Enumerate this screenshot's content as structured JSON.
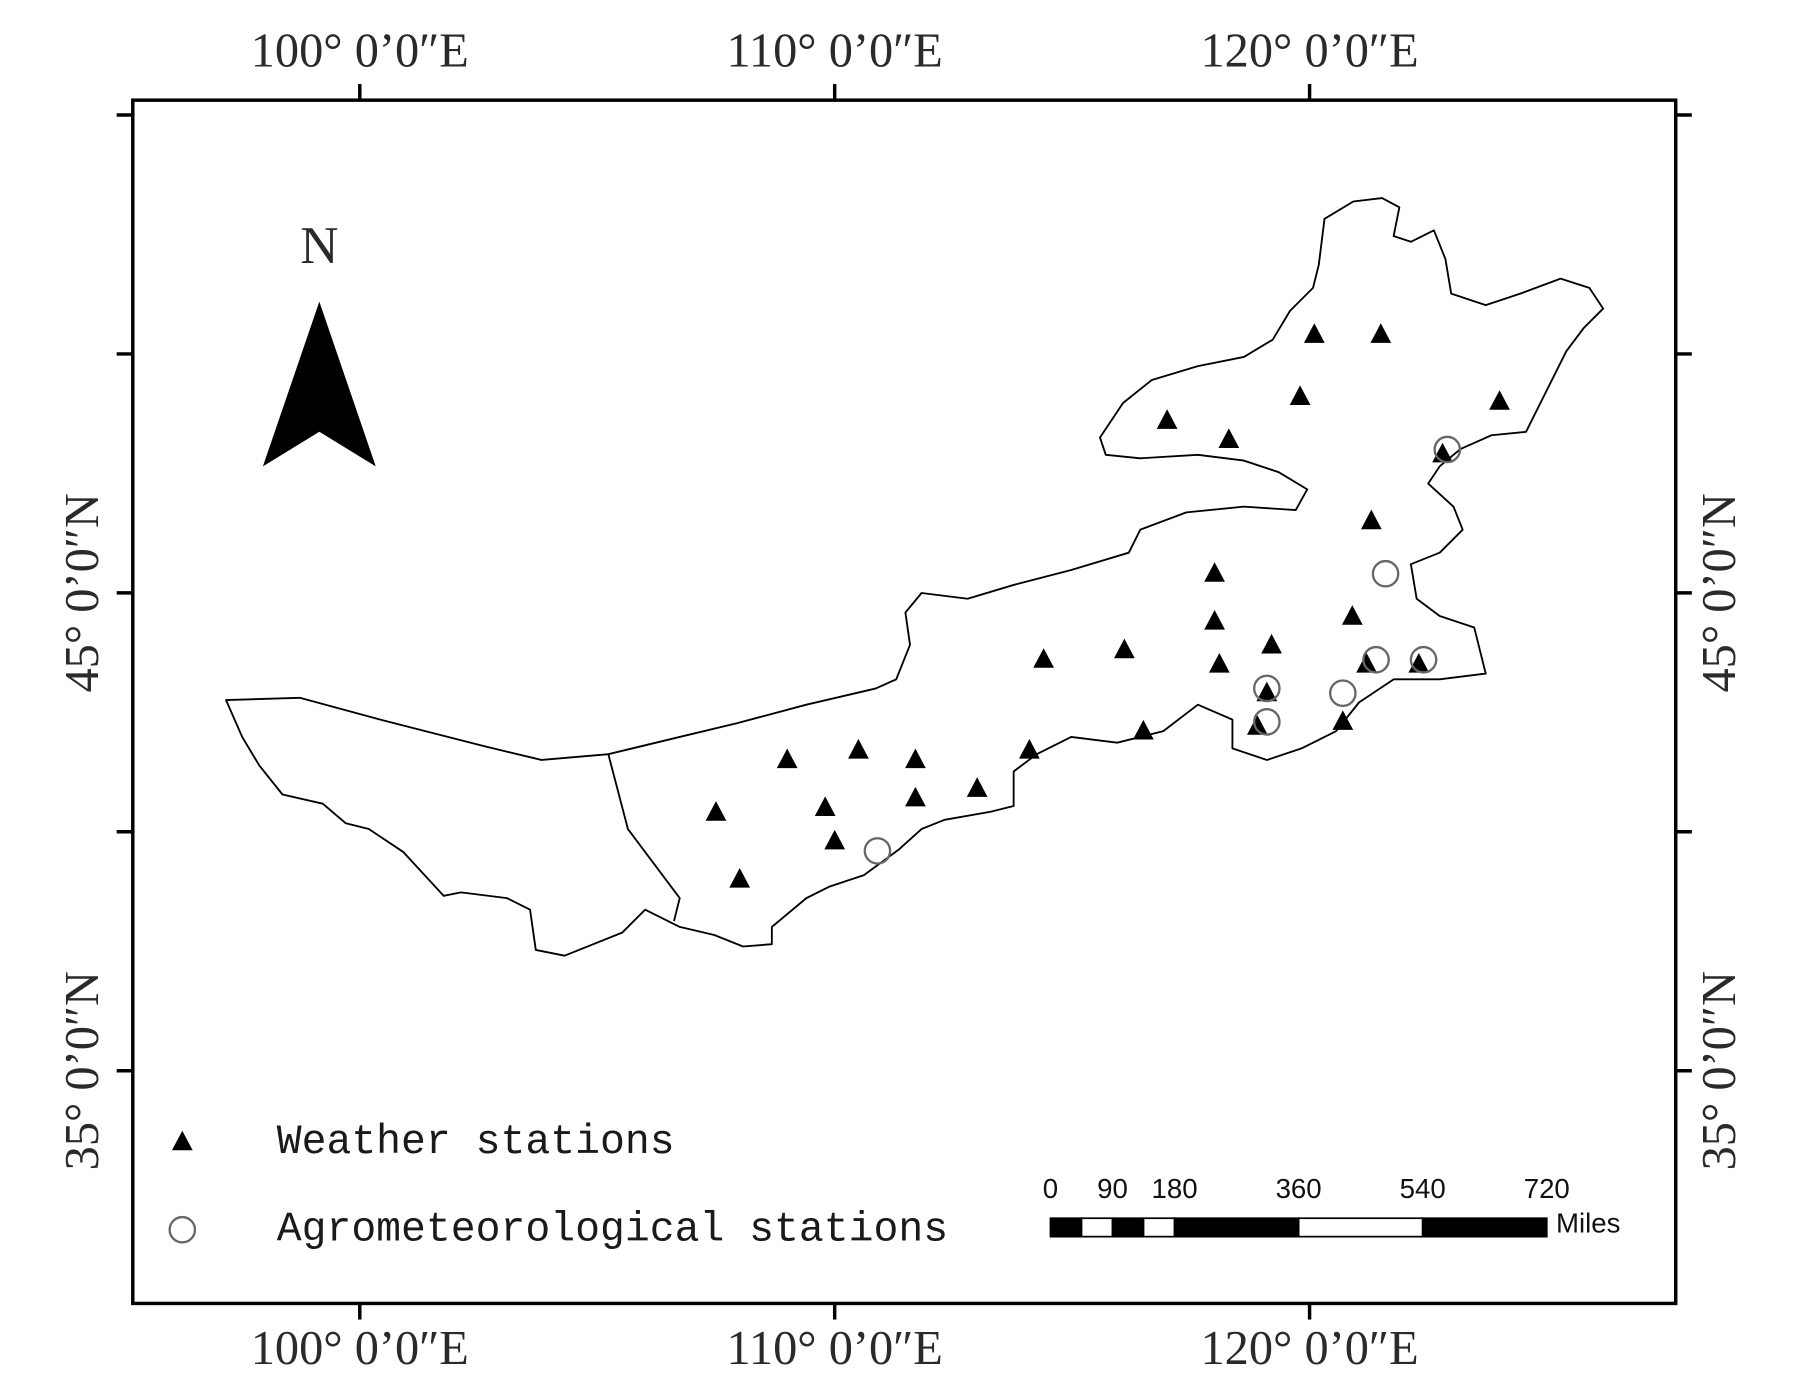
{
  "map": {
    "north": "N",
    "xlim": [
      95.22,
      127.71
    ],
    "ylim": [
      30.13,
      55.31
    ],
    "xticks": [
      {
        "value": 100,
        "label": "100° 0’0″E"
      },
      {
        "value": 110,
        "label": "110° 0’0″E"
      },
      {
        "value": 120,
        "label": "120° 0’0″E"
      }
    ],
    "yticks": [
      {
        "value": 45,
        "label": "45° 0’0″N"
      },
      {
        "value": 35,
        "label": "35° 0’0″N"
      }
    ],
    "yticks_minor": [
      55,
      50,
      40
    ],
    "stations": [
      {
        "name": "Weather stations",
        "marker": "triangle",
        "color": "#000000",
        "lon": [
          120.1,
          121.5,
          119.8,
          124.0,
          117.0,
          118.3,
          122.8,
          121.3,
          118.0,
          118.0,
          119.2,
          120.9,
          114.4,
          116.1,
          118.1,
          121.2,
          122.3,
          119.1,
          118.9,
          120.7,
          116.5,
          114.1,
          109.0,
          110.5,
          111.7,
          111.7,
          113.0,
          109.8,
          107.5,
          110.0,
          108.0
        ],
        "lat": [
          50.4,
          50.4,
          49.1,
          49.0,
          48.6,
          48.2,
          47.9,
          46.5,
          45.4,
          44.4,
          43.9,
          44.5,
          43.6,
          43.8,
          43.5,
          43.5,
          43.5,
          42.9,
          42.2,
          42.3,
          42.1,
          41.7,
          41.5,
          41.7,
          41.5,
          40.7,
          40.9,
          40.5,
          40.4,
          39.8,
          39.0
        ]
      },
      {
        "name": "Agrometeorological stations",
        "marker": "circle",
        "color": "#666666",
        "lon": [
          122.9,
          121.6,
          121.4,
          122.4,
          119.1,
          120.7,
          119.1,
          110.9
        ],
        "lat": [
          48.0,
          45.4,
          43.6,
          43.6,
          43.0,
          42.9,
          42.3,
          39.6
        ]
      }
    ],
    "scale_bar": {
      "ticks": [
        0,
        90,
        180,
        360,
        540,
        720
      ],
      "unit": "Miles"
    }
  }
}
